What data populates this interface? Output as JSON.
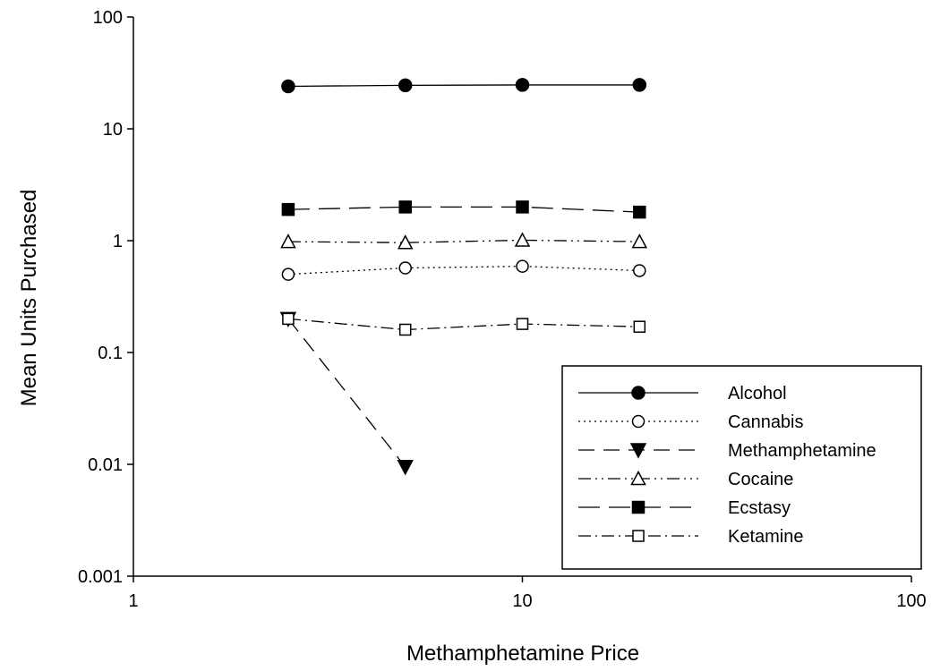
{
  "chart_data": {
    "type": "line",
    "title": "",
    "xlabel": "Methamphetamine Price",
    "ylabel": "Mean Units Purchased",
    "x_scale": "log",
    "y_scale": "log",
    "xlim": [
      1,
      100
    ],
    "ylim": [
      0.001,
      100
    ],
    "x_ticks": [
      1,
      10,
      100
    ],
    "x_tick_labels": [
      "1",
      "10",
      "100"
    ],
    "y_ticks": [
      0.001,
      0.01,
      0.1,
      1,
      10,
      100
    ],
    "y_tick_labels": [
      "0.001",
      "0.01",
      "0.1",
      "1",
      "10",
      "100"
    ],
    "grid": false,
    "legend_position": "bottom-right",
    "series": [
      {
        "name": "Alcohol",
        "marker": "circle-filled",
        "line_style": "solid",
        "x": [
          2.5,
          5,
          10,
          20
        ],
        "y": [
          24,
          24.5,
          24.7,
          24.7
        ]
      },
      {
        "name": "Cannabis",
        "marker": "circle-open",
        "line_style": "dotted",
        "x": [
          2.5,
          5,
          10,
          20
        ],
        "y": [
          0.5,
          0.57,
          0.59,
          0.54
        ]
      },
      {
        "name": "Methamphetamine",
        "marker": "triangle-down-filled",
        "line_style": "dashed",
        "x": [
          2.5,
          5
        ],
        "y": [
          0.2,
          0.0095
        ]
      },
      {
        "name": "Cocaine",
        "marker": "triangle-up-open",
        "line_style": "dash-dot-dot",
        "x": [
          2.5,
          5,
          10,
          20
        ],
        "y": [
          0.98,
          0.96,
          1.01,
          0.98
        ]
      },
      {
        "name": "Ecstasy",
        "marker": "square-filled",
        "line_style": "long-dash",
        "x": [
          2.5,
          5,
          10,
          20
        ],
        "y": [
          1.9,
          2.0,
          2.0,
          1.8
        ]
      },
      {
        "name": "Ketamine",
        "marker": "square-open",
        "line_style": "dash-dot",
        "x": [
          2.5,
          5,
          10,
          20
        ],
        "y": [
          0.2,
          0.16,
          0.18,
          0.17
        ]
      }
    ]
  }
}
